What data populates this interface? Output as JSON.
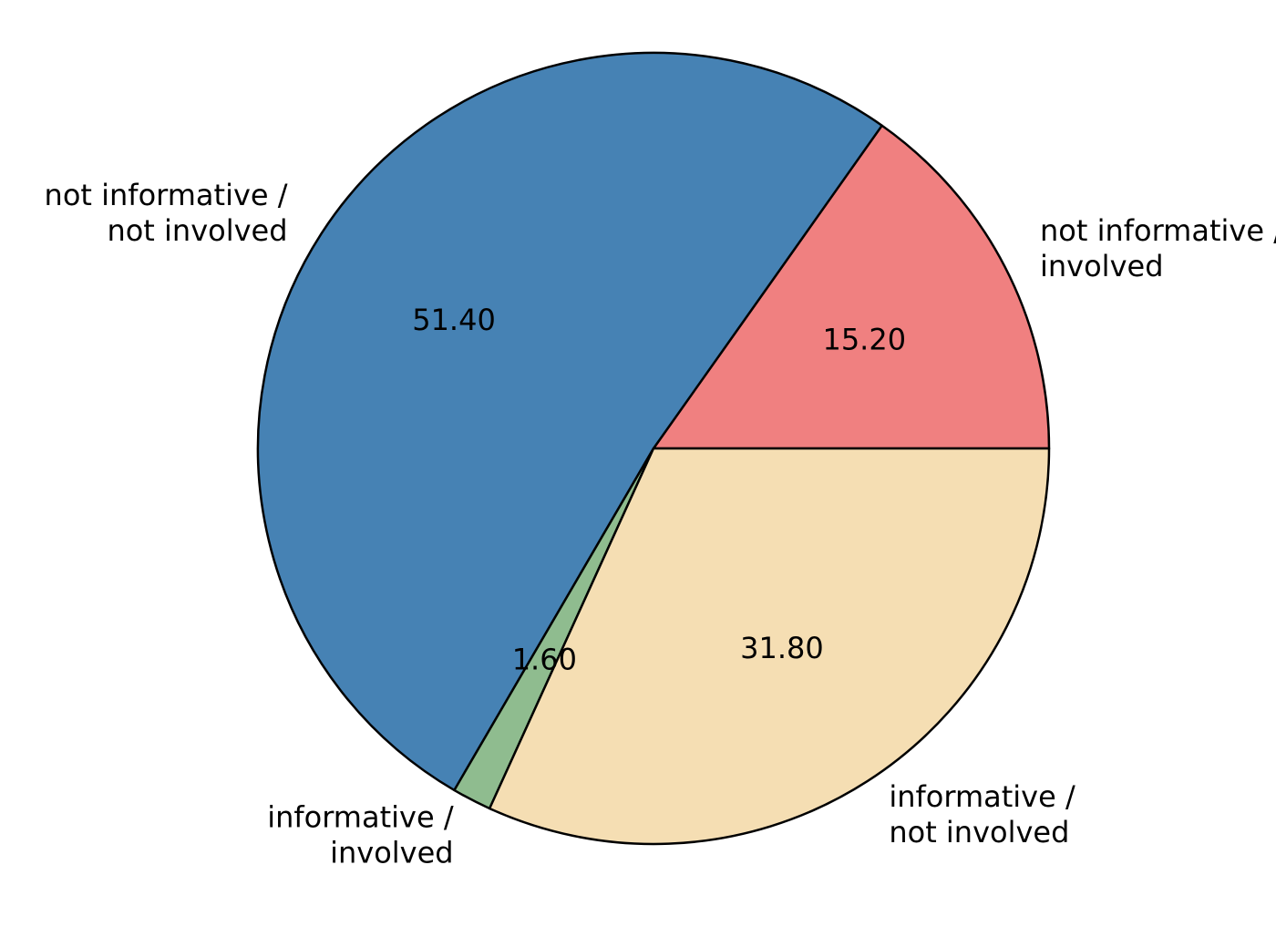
{
  "chart_data": {
    "type": "pie",
    "title": "",
    "slices": [
      {
        "label_lines": [
          "not informative /",
          "involved"
        ],
        "value": 15.2,
        "pct_text": "15.20",
        "color": "#F08080"
      },
      {
        "label_lines": [
          "not informative /",
          "not involved"
        ],
        "value": 51.4,
        "pct_text": "51.40",
        "color": "#4682B4"
      },
      {
        "label_lines": [
          "informative /",
          "involved"
        ],
        "value": 1.6,
        "pct_text": "1.60",
        "color": "#8FBC8F"
      },
      {
        "label_lines": [
          "informative /",
          "not involved"
        ],
        "value": 31.8,
        "pct_text": "31.80",
        "color": "#F5DEB3"
      }
    ],
    "start_angle_deg": 0,
    "direction": "counterclockwise",
    "edge_color": "#000000"
  }
}
